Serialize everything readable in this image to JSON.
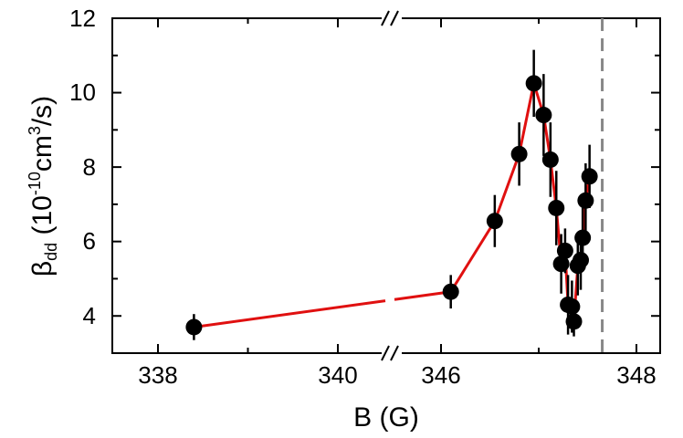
{
  "chart_data": {
    "type": "scatter",
    "xlabel": "B (G)",
    "ylabel": {
      "base": "β",
      "sub": "dd",
      "rest_a": " (10",
      "sup_a": "-10",
      "rest_b": "cm",
      "sup_b": "3",
      "rest_c": "/s)"
    },
    "x_axis_break": {
      "left_range": [
        337.5,
        341
      ],
      "right_range": [
        345.4,
        348.6
      ]
    },
    "ylim": [
      3,
      12
    ],
    "y_ticks": [
      "4",
      "6",
      "8",
      "10",
      "12"
    ],
    "x_ticks": [
      "338",
      "340",
      "346",
      "348"
    ],
    "reference_line_x": 347.65,
    "line_color": "#e01010",
    "marker_color": "#000000",
    "reference_line_color": "#888888",
    "points": [
      {
        "x": 338.4,
        "y": 3.7,
        "err": 0.35
      },
      {
        "x": 346.1,
        "y": 4.65,
        "err": 0.45
      },
      {
        "x": 346.55,
        "y": 6.55,
        "err": 0.7
      },
      {
        "x": 346.8,
        "y": 8.35,
        "err": 0.85
      },
      {
        "x": 346.95,
        "y": 10.25,
        "err": 0.9
      },
      {
        "x": 347.05,
        "y": 9.4,
        "err": 1.1
      },
      {
        "x": 347.12,
        "y": 8.2,
        "err": 1.0
      },
      {
        "x": 347.18,
        "y": 6.9,
        "err": 1.0
      },
      {
        "x": 347.23,
        "y": 5.4,
        "err": 0.8
      },
      {
        "x": 347.27,
        "y": 5.75,
        "err": 0.6
      },
      {
        "x": 347.3,
        "y": 4.3,
        "err": 0.8
      },
      {
        "x": 347.34,
        "y": 4.25,
        "err": 0.7
      },
      {
        "x": 347.36,
        "y": 3.85,
        "err": 0.4
      },
      {
        "x": 347.4,
        "y": 5.35,
        "err": 0.8
      },
      {
        "x": 347.43,
        "y": 5.5,
        "err": 0.8
      },
      {
        "x": 347.45,
        "y": 6.1,
        "err": 0.9
      },
      {
        "x": 347.48,
        "y": 7.1,
        "err": 1.0
      },
      {
        "x": 347.52,
        "y": 7.75,
        "err": 0.85
      }
    ]
  }
}
